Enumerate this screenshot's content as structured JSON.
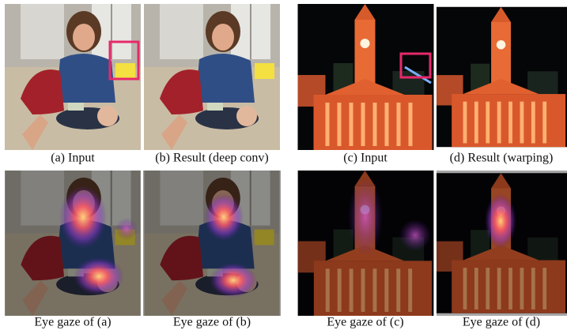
{
  "panels": [
    {
      "caption": "(a) Input"
    },
    {
      "caption": "(b) Result (deep conv)"
    },
    {
      "caption": "(c) Input"
    },
    {
      "caption": "(d) Result (warping)"
    },
    {
      "caption": "Eye gaze of (a)"
    },
    {
      "caption": "Eye gaze of (b)"
    },
    {
      "caption": "Eye gaze of (c)"
    },
    {
      "caption": "Eye gaze of (d)"
    }
  ]
}
